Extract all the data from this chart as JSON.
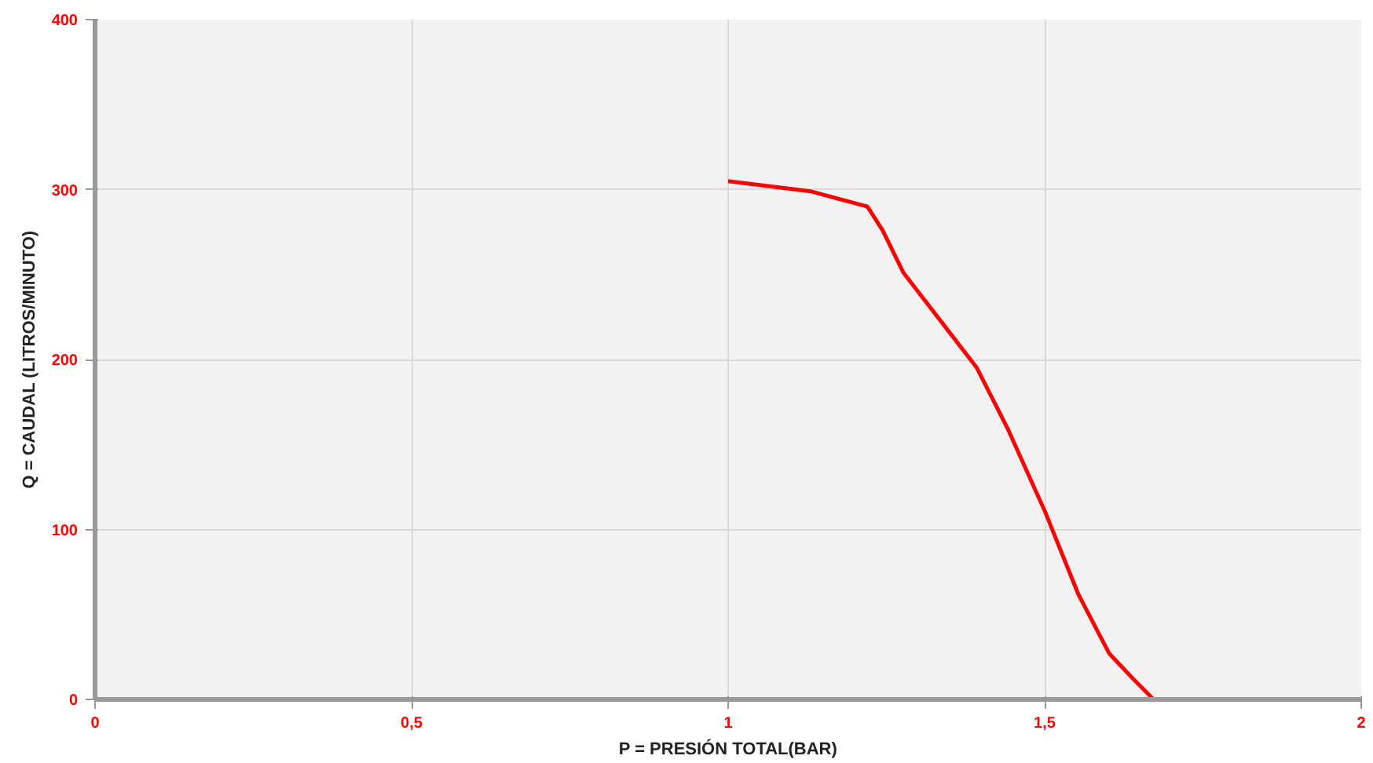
{
  "chart_data": {
    "type": "line",
    "xlabel": "P = PRESIÓN TOTAL(BAR)",
    "ylabel": "Q = CAUDAL (LITROS/MINUTO)",
    "xlim": [
      0,
      2
    ],
    "ylim": [
      0,
      400
    ],
    "xticks": [
      0,
      {
        "value": 0.5,
        "label": "0,5"
      },
      1,
      {
        "value": 1.5,
        "label": "1,5"
      },
      2
    ],
    "yticks": [
      0,
      100,
      200,
      300,
      400
    ],
    "grid": true,
    "marker": "none",
    "line_style": "solid",
    "series": [
      {
        "color": "#ff0000",
        "x": [
          1.0,
          1.13,
          1.22,
          1.244,
          1.277,
          1.331,
          1.393,
          1.442,
          1.5,
          1.553,
          1.602,
          1.64,
          1.672
        ],
        "values": [
          305,
          299,
          290,
          276,
          251,
          225,
          195,
          159,
          111,
          62,
          27,
          12,
          0
        ]
      }
    ]
  }
}
